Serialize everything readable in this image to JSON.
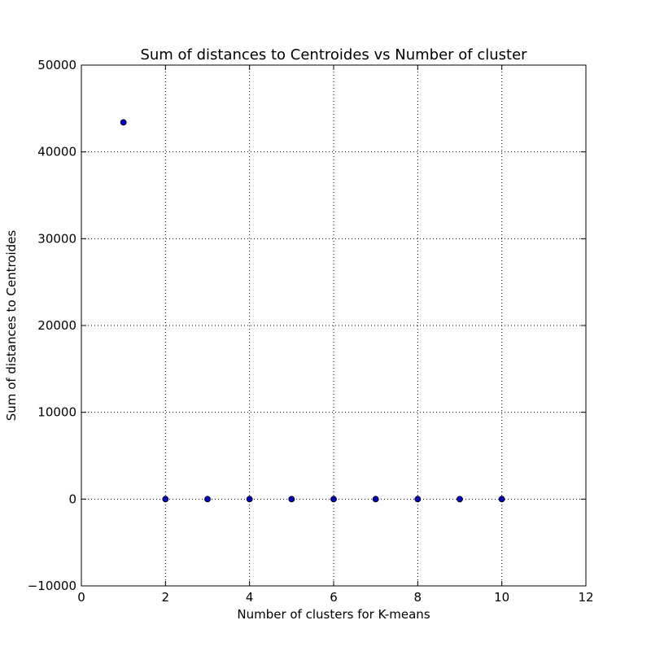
{
  "chart_data": {
    "type": "scatter",
    "title": "Sum of distances to Centroides vs Number of cluster",
    "xlabel": "Number of clusters for K-means",
    "ylabel": "Sum of distances to Centroides",
    "xlim": [
      0,
      12
    ],
    "ylim": [
      -10000,
      50000
    ],
    "xticks": [
      0,
      2,
      4,
      6,
      8,
      10,
      12
    ],
    "yticks": [
      -10000,
      0,
      10000,
      20000,
      30000,
      40000,
      50000
    ],
    "xtick_labels": [
      "0",
      "2",
      "4",
      "6",
      "8",
      "10",
      "12"
    ],
    "ytick_labels": [
      "−10000",
      "0",
      "10000",
      "20000",
      "30000",
      "40000",
      "50000"
    ],
    "grid": true,
    "marker_color": "#0000bf",
    "series": [
      {
        "x": [
          1,
          2,
          3,
          4,
          5,
          6,
          7,
          8,
          9,
          10
        ],
        "y": [
          43400,
          0,
          0,
          0,
          0,
          0,
          0,
          0,
          0,
          0
        ]
      }
    ]
  }
}
